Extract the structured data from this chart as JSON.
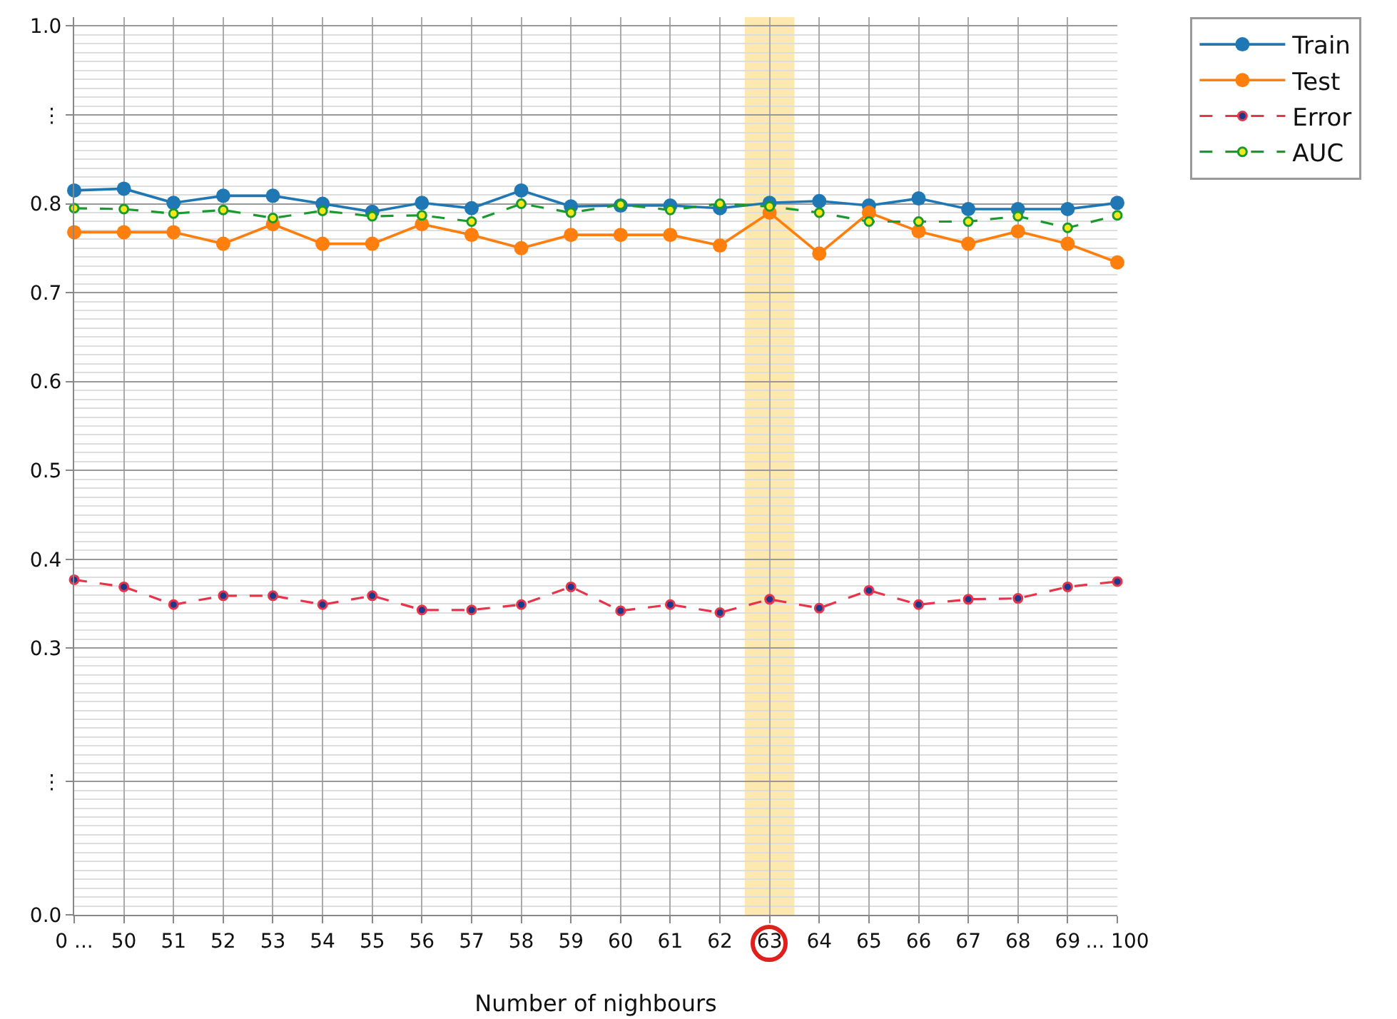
{
  "chart_data": {
    "type": "line",
    "xlabel": "Number of nighbours",
    "categories": [
      "0 ...",
      "50",
      "51",
      "52",
      "53",
      "54",
      "55",
      "56",
      "57",
      "58",
      "59",
      "60",
      "61",
      "62",
      "63",
      "64",
      "65",
      "66",
      "67",
      "68",
      "69",
      "... 100"
    ],
    "series": [
      {
        "name": "Train",
        "color": "#1f77b4",
        "line_style": "solid",
        "values": [
          0.815,
          0.817,
          0.801,
          0.809,
          0.809,
          0.8,
          0.791,
          0.801,
          0.795,
          0.815,
          0.797,
          0.798,
          0.798,
          0.795,
          0.801,
          0.803,
          0.798,
          0.806,
          0.794,
          0.794,
          0.794,
          0.801
        ]
      },
      {
        "name": "Test",
        "color": "#ff7f0e",
        "line_style": "solid",
        "values": [
          0.768,
          0.768,
          0.768,
          0.755,
          0.777,
          0.755,
          0.755,
          0.777,
          0.765,
          0.75,
          0.765,
          0.765,
          0.765,
          0.753,
          0.79,
          0.744,
          0.79,
          0.769,
          0.755,
          0.769,
          0.755,
          0.734
        ]
      },
      {
        "name": "Error",
        "color": "#e8344a",
        "line_style": "dashed",
        "values": [
          0.377,
          0.369,
          0.349,
          0.359,
          0.359,
          0.349,
          0.359,
          0.343,
          0.343,
          0.349,
          0.369,
          0.342,
          0.349,
          0.34,
          0.355,
          0.345,
          0.365,
          0.349,
          0.355,
          0.356,
          0.369,
          0.375
        ]
      },
      {
        "name": "AUC",
        "color": "#1a9a2e",
        "line_style": "dashed",
        "values": [
          0.795,
          0.794,
          0.789,
          0.793,
          0.784,
          0.792,
          0.786,
          0.787,
          0.78,
          0.8,
          0.79,
          0.799,
          0.793,
          0.8,
          0.797,
          0.79,
          0.78,
          0.78,
          0.78,
          0.786,
          0.773,
          0.787
        ]
      }
    ],
    "ylim": [
      0.0,
      1.01
    ],
    "yticks": [
      {
        "value": 0.0,
        "label": "0.0"
      },
      {
        "value": 0.15,
        "label": "⋮"
      },
      0.3,
      0.4,
      0.5,
      0.6,
      0.7,
      0.8,
      {
        "value": 0.9,
        "label": "⋮"
      },
      {
        "value": 1.0,
        "label": "1.0"
      }
    ],
    "bands": [
      {
        "axis": "x",
        "from": "63",
        "to": "63",
        "color": "#fde9b0"
      }
    ],
    "marker": "circle",
    "grid": true,
    "legend": "top right"
  }
}
